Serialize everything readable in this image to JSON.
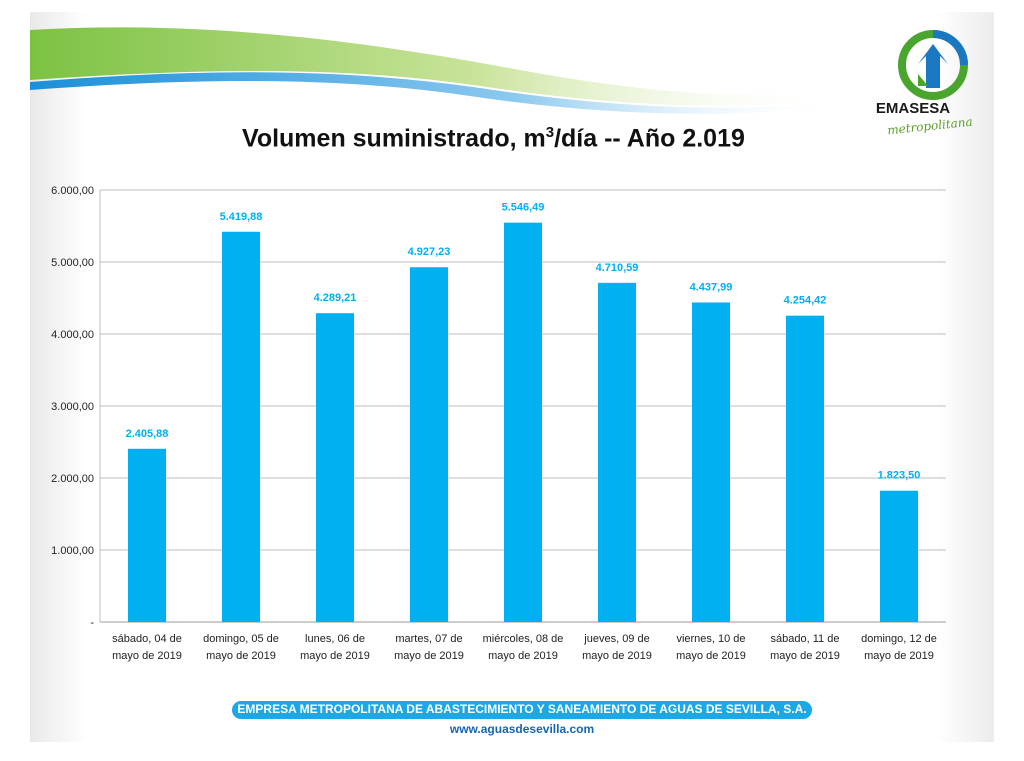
{
  "header": {
    "title_main": "Volumen suministrado, m",
    "title_sup": "3",
    "title_rest": "/día -- Año 2.019"
  },
  "logo": {
    "name": "EMASESA",
    "subtitle": "metropolitana",
    "icon": "emasesa-water-arrows-icon",
    "colors": {
      "green": "#4aa52e",
      "blue": "#1a78c2"
    }
  },
  "footer": {
    "company": "EMPRESA METROPOLITANA DE ABASTECIMIENTO Y SANEAMIENTO DE AGUAS DE SEVILLA, S.A.",
    "url": "www.aguasdesevilla.com"
  },
  "chart_data": {
    "type": "bar",
    "categories": [
      [
        "sábado, 04 de",
        "mayo de 2019"
      ],
      [
        "domingo, 05 de",
        "mayo de 2019"
      ],
      [
        "lunes, 06 de",
        "mayo de 2019"
      ],
      [
        "martes, 07 de",
        "mayo de 2019"
      ],
      [
        "miércoles, 08 de",
        "mayo de 2019"
      ],
      [
        "jueves, 09 de",
        "mayo de 2019"
      ],
      [
        "viernes, 10 de",
        "mayo de 2019"
      ],
      [
        "sábado, 11 de",
        "mayo de 2019"
      ],
      [
        "domingo, 12 de",
        "mayo de 2019"
      ]
    ],
    "values": [
      2405.88,
      5419.88,
      4289.21,
      4927.23,
      5546.49,
      4710.59,
      4437.99,
      4254.42,
      1823.5
    ],
    "value_labels": [
      "2.405,88",
      "5.419,88",
      "4.289,21",
      "4.927,23",
      "5.546,49",
      "4.710,59",
      "4.437,99",
      "4.254,42",
      "1.823,50"
    ],
    "ylim": [
      0,
      6000
    ],
    "yticks": [
      0,
      1000,
      2000,
      3000,
      4000,
      5000,
      6000
    ],
    "ytick_labels": [
      "-",
      "1.000,00",
      "2.000,00",
      "3.000,00",
      "4.000,00",
      "5.000,00",
      "6.000,00"
    ],
    "grid": true,
    "bar_color": "#00b0f0",
    "label_color": "#00b0f0"
  }
}
